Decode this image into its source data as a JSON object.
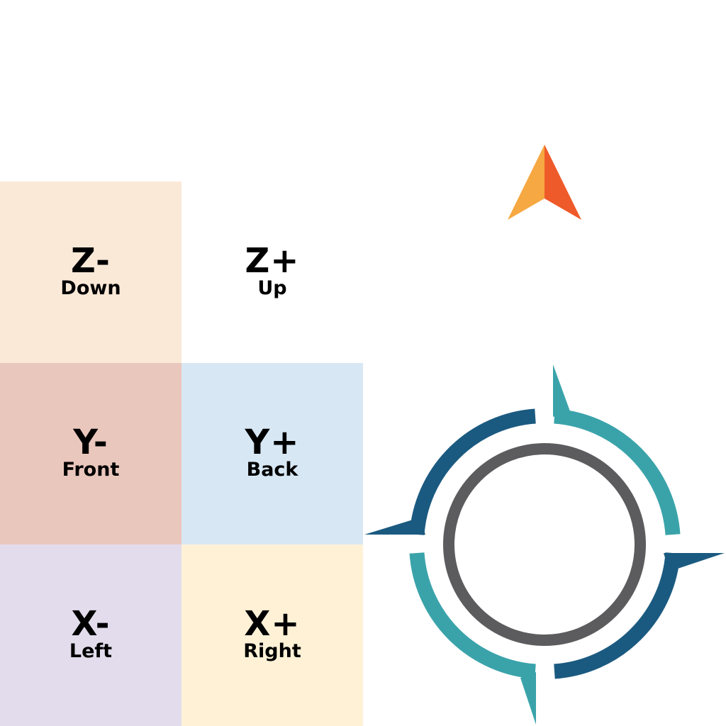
{
  "colors": {
    "z_minus_bg": "#fbe9d8",
    "z_plus_bg": "#ffffff",
    "y_minus_bg": "#eac7bd",
    "y_plus_bg": "#d8e7f4",
    "x_minus_bg": "#e2dced",
    "x_plus_bg": "#fef1d6",
    "arrow_light": "#f6a842",
    "arrow_dark": "#ef5a2a",
    "ring_dark_blue": "#1b5a80",
    "ring_teal": "#3aa3aa",
    "ring_gray": "#5c5c5e"
  },
  "tiles": {
    "z_minus": {
      "axis": "Z-",
      "direction": "Down"
    },
    "z_plus": {
      "axis": "Z+",
      "direction": "Up"
    },
    "y_minus": {
      "axis": "Y-",
      "direction": "Front"
    },
    "y_plus": {
      "axis": "Y+",
      "direction": "Back"
    },
    "x_minus": {
      "axis": "X-",
      "direction": "Left"
    },
    "x_plus": {
      "axis": "X+",
      "direction": "Right"
    }
  },
  "icons": {
    "north_arrow": "north-arrow-icon",
    "compass": "compass-icon"
  }
}
